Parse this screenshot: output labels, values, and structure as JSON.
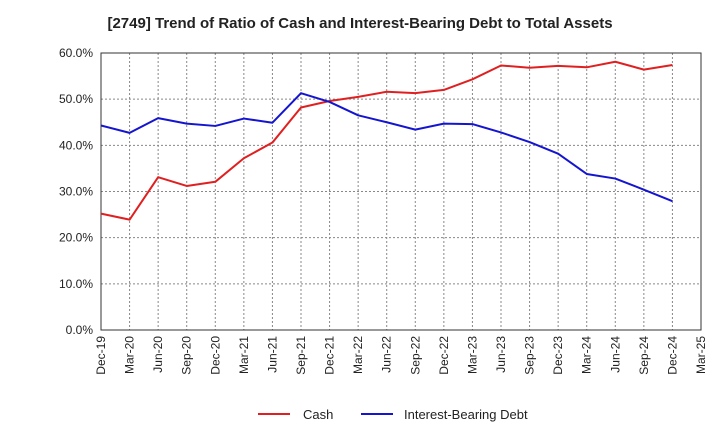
{
  "chart_data": {
    "type": "line",
    "title": "[2749]  Trend of Ratio of Cash and Interest-Bearing Debt to Total Assets",
    "xlabel": "",
    "ylabel": "",
    "ylim": [
      0,
      60
    ],
    "y_ticks": [
      "0.0%",
      "10.0%",
      "20.0%",
      "30.0%",
      "40.0%",
      "50.0%",
      "60.0%"
    ],
    "categories": [
      "Dec-19",
      "Mar-20",
      "Jun-20",
      "Sep-20",
      "Dec-20",
      "Mar-21",
      "Jun-21",
      "Sep-21",
      "Dec-21",
      "Mar-22",
      "Jun-22",
      "Sep-22",
      "Dec-22",
      "Mar-23",
      "Jun-23",
      "Sep-23",
      "Dec-23",
      "Mar-24",
      "Jun-24",
      "Sep-24",
      "Dec-24",
      "Mar-25"
    ],
    "grid": true,
    "legend_position": "bottom-center",
    "series": [
      {
        "name": "Cash",
        "color": "#e02020",
        "values": [
          25.2,
          23.9,
          33.1,
          31.2,
          32.1,
          37.2,
          40.6,
          48.2,
          49.6,
          50.5,
          51.6,
          51.3,
          52.0,
          54.3,
          57.3,
          56.8,
          57.2,
          56.9,
          58.1,
          56.4,
          57.4,
          null
        ]
      },
      {
        "name": "Interest-Bearing Debt",
        "color": "#1515d0",
        "values": [
          44.3,
          42.7,
          45.9,
          44.7,
          44.2,
          45.8,
          44.9,
          51.3,
          49.4,
          46.5,
          45.0,
          43.4,
          44.7,
          44.6,
          42.8,
          40.7,
          38.2,
          33.8,
          32.8,
          30.4,
          27.9,
          null
        ]
      }
    ]
  }
}
